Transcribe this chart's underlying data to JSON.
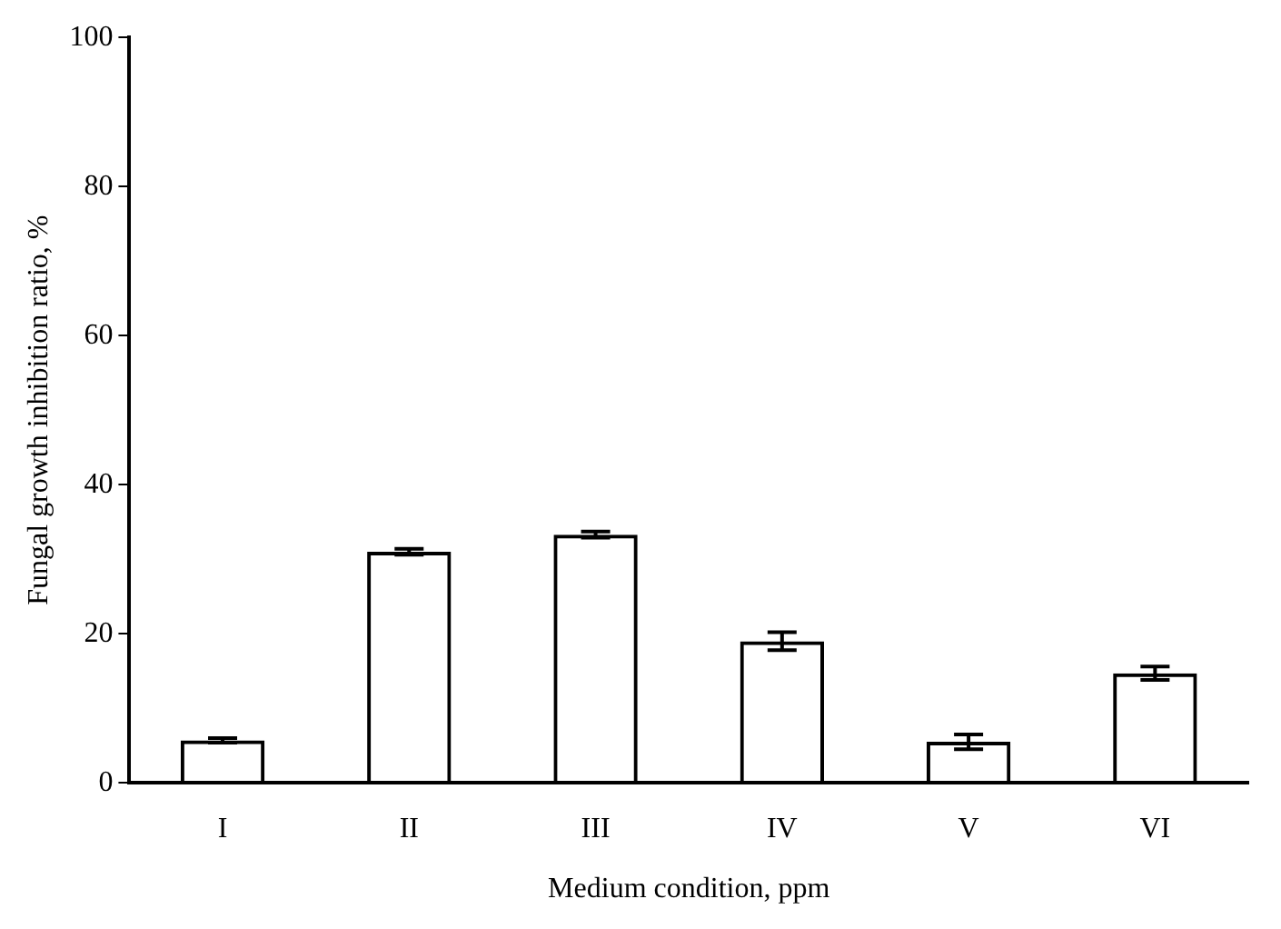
{
  "chart_data": {
    "type": "bar",
    "xlabel": "Medium condition, ppm",
    "ylabel": "Fungal growth inhibition ratio, %",
    "categories": [
      "I",
      "II",
      "III",
      "IV",
      "V",
      "VI"
    ],
    "values": [
      5.7,
      31,
      33.3,
      19,
      5.5,
      14.7
    ],
    "errors": [
      0.3,
      0.4,
      0.4,
      1.2,
      1,
      0.9
    ],
    "color": "#000000",
    "ylim": [
      0,
      100
    ],
    "yticks": [
      0,
      20,
      40,
      60,
      80,
      100
    ],
    "grid": false,
    "legend": false
  }
}
